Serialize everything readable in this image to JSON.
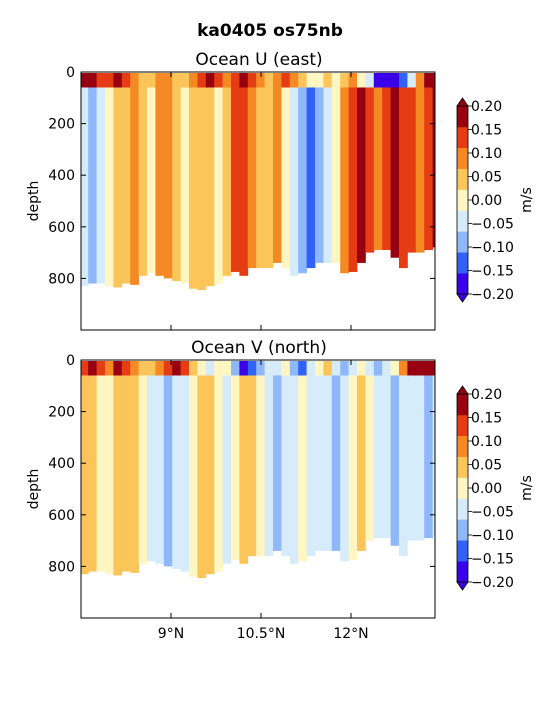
{
  "figure": {
    "suptitle": "ka0405 os75nb"
  },
  "chart_data": [
    {
      "type": "heatmap",
      "title": "Ocean U (east)",
      "ylabel": "depth",
      "y_ticks": [
        "0",
        "200",
        "400",
        "600",
        "800"
      ],
      "x_ticks": [
        "9°N",
        "10.5°N",
        "12°N"
      ],
      "xlim": [
        7.5,
        13.4
      ],
      "ylim": [
        1000,
        0
      ],
      "colorbar": {
        "label": "m/s",
        "ticks": [
          "0.20",
          "0.15",
          "0.10",
          "0.05",
          "0.00",
          "−0.05",
          "−0.10",
          "−0.15",
          "−0.20"
        ],
        "levels": [
          -0.2,
          -0.15,
          -0.1,
          -0.05,
          0,
          0.05,
          0.1,
          0.15,
          0.2
        ],
        "colors": [
          "#3a00e8",
          "#2f62f5",
          "#8fb8fb",
          "#d7ecfb",
          "#fff6c2",
          "#fbc55a",
          "#f58a25",
          "#e63c14",
          "#960010"
        ]
      },
      "depth_max": [
        830,
        820,
        820,
        830,
        835,
        820,
        825,
        790,
        780,
        790,
        800,
        810,
        820,
        840,
        845,
        830,
        820,
        790,
        775,
        790,
        760,
        760,
        760,
        740,
        760,
        790,
        780,
        760,
        740,
        740,
        740,
        780,
        775,
        740,
        700,
        690,
        690,
        720,
        760,
        700,
        700,
        690,
        680,
        760
      ],
      "x": [
        7.55,
        7.69,
        7.83,
        7.97,
        8.11,
        8.25,
        8.39,
        8.53,
        8.67,
        8.81,
        8.95,
        9.09,
        9.23,
        9.37,
        9.51,
        9.65,
        9.79,
        9.93,
        10.07,
        10.21,
        10.35,
        10.49,
        10.63,
        10.77,
        10.91,
        11.05,
        11.19,
        11.33,
        11.47,
        11.61,
        11.75,
        11.89,
        12.03,
        12.17,
        12.31,
        12.45,
        12.59,
        12.73,
        12.87,
        13.01,
        13.15,
        13.29,
        13.43,
        13.57
      ],
      "notes": "u_surface values at 0-60 m; u_deep values below",
      "u_surface": [
        0.2,
        0.2,
        0.15,
        0.15,
        0.2,
        0.15,
        0.1,
        0.05,
        0.05,
        0.1,
        0.1,
        0.05,
        0.05,
        0.1,
        0.15,
        0.2,
        0.15,
        0.1,
        0.15,
        0.2,
        0.15,
        0.1,
        0.05,
        0.1,
        0.15,
        0.1,
        0.05,
        0.0,
        0.0,
        0.05,
        0.0,
        0.05,
        0.1,
        0.0,
        -0.05,
        -0.2,
        -0.2,
        -0.2,
        -0.15,
        -0.05,
        0.1,
        0.2,
        0.2,
        0.15
      ],
      "u_deep": [
        -0.05,
        -0.1,
        -0.05,
        0.0,
        0.05,
        0.05,
        0.1,
        0.05,
        0.0,
        0.1,
        0.1,
        0.05,
        0.0,
        0.05,
        0.05,
        0.05,
        0.0,
        0.05,
        0.15,
        0.15,
        0.1,
        0.05,
        0.05,
        0.1,
        0.0,
        -0.05,
        -0.1,
        -0.15,
        -0.1,
        -0.05,
        0.0,
        0.1,
        0.15,
        0.2,
        0.15,
        0.1,
        0.15,
        0.2,
        0.15,
        0.15,
        0.1,
        0.15,
        0.2,
        0.1
      ]
    },
    {
      "type": "heatmap",
      "title": "Ocean V (north)",
      "ylabel": "depth",
      "y_ticks": [
        "0",
        "200",
        "400",
        "600",
        "800"
      ],
      "x_ticks": [
        "9°N",
        "10.5°N",
        "12°N"
      ],
      "xlim": [
        7.5,
        13.4
      ],
      "ylim": [
        1000,
        0
      ],
      "colorbar": {
        "label": "m/s",
        "ticks": [
          "0.20",
          "0.15",
          "0.10",
          "0.05",
          "0.00",
          "−0.05",
          "−0.10",
          "−0.15",
          "−0.20"
        ],
        "levels": [
          -0.2,
          -0.15,
          -0.1,
          -0.05,
          0,
          0.05,
          0.1,
          0.15,
          0.2
        ],
        "colors": [
          "#3a00e8",
          "#2f62f5",
          "#8fb8fb",
          "#d7ecfb",
          "#fff6c2",
          "#fbc55a",
          "#f58a25",
          "#e63c14",
          "#960010"
        ]
      },
      "depth_max": [
        830,
        820,
        820,
        830,
        835,
        820,
        825,
        790,
        780,
        790,
        800,
        810,
        820,
        840,
        845,
        830,
        820,
        790,
        775,
        790,
        760,
        760,
        760,
        740,
        760,
        790,
        780,
        760,
        740,
        740,
        740,
        780,
        775,
        740,
        700,
        690,
        690,
        720,
        760,
        700,
        700,
        690,
        680,
        760
      ],
      "x": [
        7.55,
        7.69,
        7.83,
        7.97,
        8.11,
        8.25,
        8.39,
        8.53,
        8.67,
        8.81,
        8.95,
        9.09,
        9.23,
        9.37,
        9.51,
        9.65,
        9.79,
        9.93,
        10.07,
        10.21,
        10.35,
        10.49,
        10.63,
        10.77,
        10.91,
        11.05,
        11.19,
        11.33,
        11.47,
        11.61,
        11.75,
        11.89,
        12.03,
        12.17,
        12.31,
        12.45,
        12.59,
        12.73,
        12.87,
        13.01,
        13.15,
        13.29,
        13.43,
        13.57
      ],
      "notes": "v_surface values at 0-60 m; v_deep values below",
      "v_surface": [
        0.15,
        0.2,
        0.15,
        0.1,
        0.2,
        0.15,
        0.1,
        0.05,
        0.05,
        0.1,
        0.15,
        0.2,
        0.15,
        0.05,
        0.0,
        -0.05,
        0.0,
        0.0,
        -0.1,
        -0.2,
        -0.15,
        -0.1,
        -0.05,
        -0.05,
        0.0,
        -0.1,
        -0.15,
        -0.05,
        0.0,
        0.05,
        -0.05,
        -0.1,
        -0.05,
        0.0,
        -0.05,
        -0.1,
        -0.05,
        0.0,
        0.1,
        0.2,
        0.2,
        0.2,
        0.2,
        0.15
      ],
      "v_deep": [
        0.05,
        0.05,
        0.0,
        0.0,
        0.05,
        0.05,
        0.05,
        0.0,
        -0.05,
        -0.05,
        -0.1,
        -0.05,
        -0.05,
        0.0,
        0.05,
        0.05,
        0.0,
        -0.05,
        0.0,
        0.05,
        0.05,
        0.0,
        -0.05,
        -0.1,
        -0.05,
        -0.05,
        0.0,
        -0.05,
        -0.05,
        -0.05,
        -0.1,
        -0.05,
        0.0,
        0.05,
        0.0,
        -0.05,
        -0.05,
        -0.1,
        -0.05,
        -0.05,
        -0.05,
        -0.1,
        -0.05,
        0.05
      ]
    }
  ]
}
